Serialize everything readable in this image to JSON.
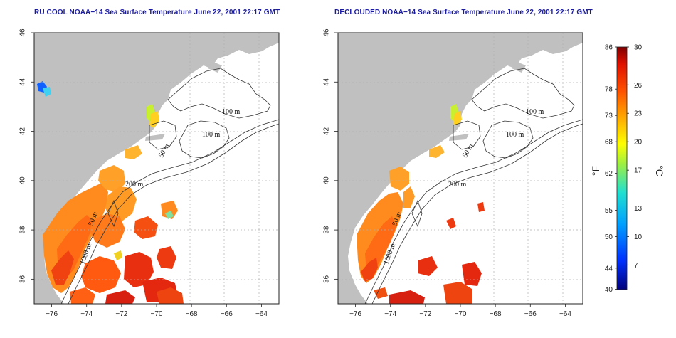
{
  "panels": [
    {
      "title": "RU COOL NOAA−14 Sea Surface Temperature June 22, 2001 22:17 GMT",
      "variant": "raw"
    },
    {
      "title": "DECLOUDED NOAA−14 Sea Surface Temperature June 22, 2001 22:17 GMT",
      "variant": "declouded"
    }
  ],
  "axes": {
    "lon_ticks": [
      "−76",
      "−74",
      "−72",
      "−70",
      "−68",
      "−66",
      "−64"
    ],
    "lat_ticks": [
      "36",
      "38",
      "40",
      "42",
      "44",
      "46"
    ],
    "lon_range": [
      -77,
      -63
    ],
    "lat_range": [
      35,
      46
    ]
  },
  "contour_labels": [
    "100 m",
    "100 m",
    "50 m",
    "200 m",
    "50 m",
    "1000 m"
  ],
  "colorbar": {
    "fahrenheit_ticks": [
      "86",
      "78",
      "73",
      "68",
      "62",
      "55",
      "50",
      "44",
      "40"
    ],
    "celsius_ticks": [
      "30",
      "26",
      "23",
      "20",
      "17",
      "13",
      "10",
      "7"
    ],
    "unit_f": "°F",
    "unit_c": "°C",
    "range_c": [
      4.4,
      30
    ]
  },
  "colors": {
    "land": "#c0c0c0",
    "ocean": "#ffffff",
    "grid": "#b0b0b0",
    "title": "#1a1aa0"
  }
}
